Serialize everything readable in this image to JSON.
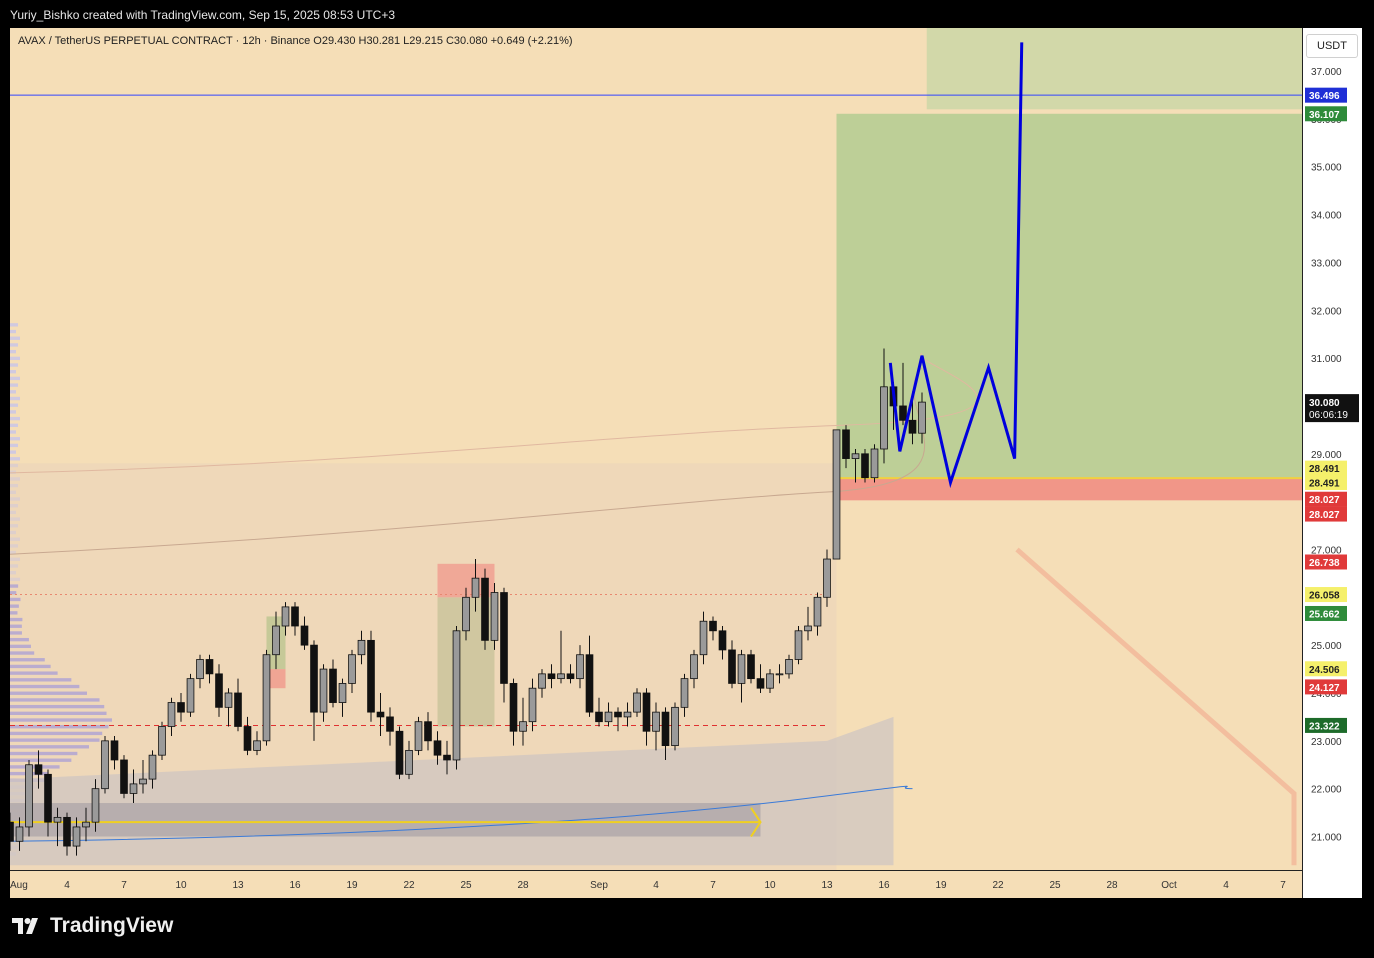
{
  "header": {
    "text": "Yuriy_Bishko created with TradingView.com, Sep 15, 2025 08:53 UTC+3"
  },
  "legend": {
    "text": "AVAX / TetherUS PERPETUAL CONTRACT · 12h · Binance  O29.430  H30.281  L29.215  C30.080  +0.649 (+2.21%)"
  },
  "unit_label": "USDT",
  "footer": {
    "brand": "TradingView"
  },
  "chart_data": {
    "type": "candlestick",
    "symbol": "AVAX / TetherUS PERPETUAL CONTRACT",
    "interval": "12h",
    "exchange": "Binance",
    "ohlc": {
      "open": 29.43,
      "high": 30.281,
      "low": 29.215,
      "close": 30.08,
      "change": 0.649,
      "change_pct": 2.21
    },
    "ylim": [
      20.3,
      37.9
    ],
    "y_ticks": [
      21,
      22,
      23,
      24,
      25,
      26,
      27,
      28,
      29,
      30,
      31,
      32,
      33,
      34,
      35,
      36,
      37
    ],
    "y_tick_labels": [
      "21.000",
      "22.000",
      "23.000",
      "24.000",
      "25.000",
      "26.000",
      "27.000",
      "28.000",
      "29.000",
      "30.000",
      "31.000",
      "32.000",
      "33.000",
      "34.000",
      "35.000",
      "36.000",
      "37.000"
    ],
    "x_range": [
      "2025-08-01",
      "2025-10-08"
    ],
    "x_ticks": [
      {
        "date": "2025-08-01",
        "label": "Aug"
      },
      {
        "date": "2025-08-04",
        "label": "4"
      },
      {
        "date": "2025-08-07",
        "label": "7"
      },
      {
        "date": "2025-08-10",
        "label": "10"
      },
      {
        "date": "2025-08-13",
        "label": "13"
      },
      {
        "date": "2025-08-16",
        "label": "16"
      },
      {
        "date": "2025-08-19",
        "label": "19"
      },
      {
        "date": "2025-08-22",
        "label": "22"
      },
      {
        "date": "2025-08-25",
        "label": "25"
      },
      {
        "date": "2025-08-28",
        "label": "28"
      },
      {
        "date": "2025-09-01",
        "label": "Sep"
      },
      {
        "date": "2025-09-04",
        "label": "4"
      },
      {
        "date": "2025-09-07",
        "label": "7"
      },
      {
        "date": "2025-09-10",
        "label": "10"
      },
      {
        "date": "2025-09-13",
        "label": "13"
      },
      {
        "date": "2025-09-16",
        "label": "16"
      },
      {
        "date": "2025-09-19",
        "label": "19"
      },
      {
        "date": "2025-09-22",
        "label": "22"
      },
      {
        "date": "2025-09-25",
        "label": "25"
      },
      {
        "date": "2025-09-28",
        "label": "28"
      },
      {
        "date": "2025-10-01",
        "label": "Oct"
      },
      {
        "date": "2025-10-04",
        "label": "4"
      },
      {
        "date": "2025-10-07",
        "label": "7"
      }
    ],
    "colors": {
      "bull": "#9a9a9a",
      "bear": "#111111",
      "background": "#f5deb7",
      "projection": "#0000dd"
    },
    "candles": [
      [
        "2025-08-01T00:00",
        21.3,
        21.5,
        20.7,
        20.9
      ],
      [
        "2025-08-01T12:00",
        20.9,
        21.4,
        20.7,
        21.2
      ],
      [
        "2025-08-02T00:00",
        21.2,
        22.6,
        21.0,
        22.5
      ],
      [
        "2025-08-02T12:00",
        22.5,
        22.8,
        22.0,
        22.3
      ],
      [
        "2025-08-03T00:00",
        22.3,
        22.4,
        21.0,
        21.3
      ],
      [
        "2025-08-03T12:00",
        21.3,
        21.6,
        20.8,
        21.4
      ],
      [
        "2025-08-04T00:00",
        21.4,
        21.5,
        20.6,
        20.8
      ],
      [
        "2025-08-04T12:00",
        20.8,
        21.4,
        20.6,
        21.2
      ],
      [
        "2025-08-05T00:00",
        21.2,
        21.6,
        20.9,
        21.3
      ],
      [
        "2025-08-05T12:00",
        21.3,
        22.2,
        21.1,
        22.0
      ],
      [
        "2025-08-06T00:00",
        22.0,
        23.1,
        21.9,
        23.0
      ],
      [
        "2025-08-06T12:00",
        23.0,
        23.1,
        22.4,
        22.6
      ],
      [
        "2025-08-07T00:00",
        22.6,
        22.7,
        21.8,
        21.9
      ],
      [
        "2025-08-07T12:00",
        21.9,
        22.4,
        21.7,
        22.1
      ],
      [
        "2025-08-08T00:00",
        22.1,
        22.6,
        21.9,
        22.2
      ],
      [
        "2025-08-08T12:00",
        22.2,
        22.8,
        22.0,
        22.7
      ],
      [
        "2025-08-09T00:00",
        22.7,
        23.4,
        22.6,
        23.3
      ],
      [
        "2025-08-09T12:00",
        23.3,
        23.9,
        23.1,
        23.8
      ],
      [
        "2025-08-10T00:00",
        23.8,
        24.0,
        23.4,
        23.6
      ],
      [
        "2025-08-10T12:00",
        23.6,
        24.4,
        23.5,
        24.3
      ],
      [
        "2025-08-11T00:00",
        24.3,
        24.8,
        24.1,
        24.7
      ],
      [
        "2025-08-11T12:00",
        24.7,
        24.8,
        24.2,
        24.4
      ],
      [
        "2025-08-12T00:00",
        24.4,
        24.6,
        23.5,
        23.7
      ],
      [
        "2025-08-12T12:00",
        23.7,
        24.1,
        23.3,
        24.0
      ],
      [
        "2025-08-13T00:00",
        24.0,
        24.3,
        23.2,
        23.3
      ],
      [
        "2025-08-13T12:00",
        23.3,
        23.5,
        22.7,
        22.8
      ],
      [
        "2025-08-14T00:00",
        22.8,
        23.2,
        22.7,
        23.0
      ],
      [
        "2025-08-14T12:00",
        23.0,
        24.9,
        22.9,
        24.8
      ],
      [
        "2025-08-15T00:00",
        24.8,
        25.7,
        24.5,
        25.4
      ],
      [
        "2025-08-15T12:00",
        25.4,
        25.9,
        25.2,
        25.8
      ],
      [
        "2025-08-16T00:00",
        25.8,
        25.9,
        25.2,
        25.4
      ],
      [
        "2025-08-16T12:00",
        25.4,
        25.6,
        24.9,
        25.0
      ],
      [
        "2025-08-17T00:00",
        25.0,
        25.1,
        23.0,
        23.6
      ],
      [
        "2025-08-17T12:00",
        23.6,
        24.6,
        23.4,
        24.5
      ],
      [
        "2025-08-18T00:00",
        24.5,
        24.7,
        23.7,
        23.8
      ],
      [
        "2025-08-18T12:00",
        23.8,
        24.3,
        23.5,
        24.2
      ],
      [
        "2025-08-19T00:00",
        24.2,
        24.9,
        24.0,
        24.8
      ],
      [
        "2025-08-19T12:00",
        24.8,
        25.3,
        24.6,
        25.1
      ],
      [
        "2025-08-20T00:00",
        25.1,
        25.3,
        23.4,
        23.6
      ],
      [
        "2025-08-20T12:00",
        23.6,
        24.0,
        23.1,
        23.5
      ],
      [
        "2025-08-21T00:00",
        23.5,
        23.7,
        22.9,
        23.2
      ],
      [
        "2025-08-21T12:00",
        23.2,
        23.3,
        22.2,
        22.3
      ],
      [
        "2025-08-22T00:00",
        22.3,
        23.0,
        22.2,
        22.8
      ],
      [
        "2025-08-22T12:00",
        22.8,
        23.5,
        22.7,
        23.4
      ],
      [
        "2025-08-23T00:00",
        23.4,
        23.6,
        22.8,
        23.0
      ],
      [
        "2025-08-23T12:00",
        23.0,
        23.2,
        22.5,
        22.7
      ],
      [
        "2025-08-24T00:00",
        22.7,
        23.0,
        22.3,
        22.6
      ],
      [
        "2025-08-24T12:00",
        22.6,
        25.4,
        22.4,
        25.3
      ],
      [
        "2025-08-25T00:00",
        25.3,
        26.2,
        25.1,
        26.0
      ],
      [
        "2025-08-25T12:00",
        26.0,
        26.8,
        25.7,
        26.4
      ],
      [
        "2025-08-26T00:00",
        26.4,
        26.6,
        24.9,
        25.1
      ],
      [
        "2025-08-26T12:00",
        25.1,
        26.3,
        24.9,
        26.1
      ],
      [
        "2025-08-27T00:00",
        26.1,
        26.2,
        23.8,
        24.2
      ],
      [
        "2025-08-27T12:00",
        24.2,
        24.3,
        22.9,
        23.2
      ],
      [
        "2025-08-28T00:00",
        23.2,
        23.9,
        22.9,
        23.4
      ],
      [
        "2025-08-28T12:00",
        23.4,
        24.3,
        23.2,
        24.1
      ],
      [
        "2025-08-29T00:00",
        24.1,
        24.5,
        23.9,
        24.4
      ],
      [
        "2025-08-29T12:00",
        24.4,
        24.6,
        24.1,
        24.3
      ],
      [
        "2025-08-30T00:00",
        24.3,
        25.3,
        24.2,
        24.4
      ],
      [
        "2025-08-30T12:00",
        24.4,
        24.6,
        24.2,
        24.3
      ],
      [
        "2025-08-31T00:00",
        24.3,
        25.0,
        24.1,
        24.8
      ],
      [
        "2025-08-31T12:00",
        24.8,
        25.2,
        23.5,
        23.6
      ],
      [
        "2025-09-01T00:00",
        23.6,
        23.9,
        23.3,
        23.4
      ],
      [
        "2025-09-01T12:00",
        23.4,
        23.8,
        23.3,
        23.6
      ],
      [
        "2025-09-02T00:00",
        23.6,
        23.7,
        23.2,
        23.5
      ],
      [
        "2025-09-02T12:00",
        23.5,
        23.8,
        23.3,
        23.6
      ],
      [
        "2025-09-03T00:00",
        23.6,
        24.1,
        23.5,
        24.0
      ],
      [
        "2025-09-03T12:00",
        24.0,
        24.1,
        22.9,
        23.2
      ],
      [
        "2025-09-04T00:00",
        23.2,
        23.8,
        22.8,
        23.6
      ],
      [
        "2025-09-04T12:00",
        23.6,
        23.7,
        22.6,
        22.9
      ],
      [
        "2025-09-05T00:00",
        22.9,
        23.8,
        22.8,
        23.7
      ],
      [
        "2025-09-05T12:00",
        23.7,
        24.4,
        23.5,
        24.3
      ],
      [
        "2025-09-06T00:00",
        24.3,
        24.9,
        24.1,
        24.8
      ],
      [
        "2025-09-06T12:00",
        24.8,
        25.7,
        24.6,
        25.5
      ],
      [
        "2025-09-07T00:00",
        25.5,
        25.6,
        25.1,
        25.3
      ],
      [
        "2025-09-07T12:00",
        25.3,
        25.4,
        24.7,
        24.9
      ],
      [
        "2025-09-08T00:00",
        24.9,
        25.1,
        24.1,
        24.2
      ],
      [
        "2025-09-08T12:00",
        24.2,
        24.9,
        23.8,
        24.8
      ],
      [
        "2025-09-09T00:00",
        24.8,
        24.9,
        24.2,
        24.3
      ],
      [
        "2025-09-09T12:00",
        24.3,
        24.6,
        24.0,
        24.1
      ],
      [
        "2025-09-10T00:00",
        24.1,
        24.5,
        24.0,
        24.4
      ],
      [
        "2025-09-10T12:00",
        24.4,
        24.6,
        24.2,
        24.4
      ],
      [
        "2025-09-11T00:00",
        24.4,
        24.8,
        24.3,
        24.7
      ],
      [
        "2025-09-11T12:00",
        24.7,
        25.4,
        24.6,
        25.3
      ],
      [
        "2025-09-12T00:00",
        25.3,
        25.8,
        25.1,
        25.4
      ],
      [
        "2025-09-12T12:00",
        25.4,
        26.1,
        25.2,
        26.0
      ],
      [
        "2025-09-13T00:00",
        26.0,
        27.0,
        25.8,
        26.8
      ],
      [
        "2025-09-13T12:00",
        26.8,
        29.5,
        26.8,
        29.5
      ],
      [
        "2025-09-14T00:00",
        29.5,
        29.6,
        28.7,
        28.9
      ],
      [
        "2025-09-14T12:00",
        28.9,
        29.1,
        28.4,
        29.0
      ],
      [
        "2025-09-15T00:00",
        29.0,
        29.1,
        28.4,
        28.5
      ],
      [
        "2025-09-15T12:00",
        28.5,
        29.2,
        28.4,
        29.1
      ],
      [
        "2025-09-16T00:00",
        29.1,
        31.2,
        28.8,
        30.4
      ],
      [
        "2025-09-16T12:00",
        30.4,
        30.5,
        29.5,
        30.0
      ],
      [
        "2025-09-17T00:00",
        30.0,
        30.9,
        29.6,
        29.7
      ],
      [
        "2025-09-17T12:00",
        29.7,
        30.3,
        29.2,
        29.43
      ],
      [
        "2025-09-18T00:00",
        29.43,
        30.281,
        29.215,
        30.08
      ]
    ],
    "trade_zone": {
      "x_start": "2025-09-13T12:00",
      "x_end": "2025-10-08",
      "target_top": 36.107,
      "entry": 28.491,
      "stop": 28.027
    },
    "projection_path": [
      [
        "2025-09-16T08:00",
        30.9
      ],
      [
        "2025-09-16T20:00",
        29.05
      ],
      [
        "2025-09-18T00:00",
        31.05
      ],
      [
        "2025-09-19T12:00",
        28.4
      ],
      [
        "2025-09-21T12:00",
        30.8
      ],
      [
        "2025-09-22T21:00",
        28.9
      ],
      [
        "2025-09-23T06:00",
        37.6
      ]
    ],
    "horizontal_levels": [
      {
        "price": 36.496,
        "color": "#3344ff",
        "style": "solid"
      },
      {
        "price": 26.058,
        "color": "#e88870",
        "style": "dotted"
      },
      {
        "price": 23.32,
        "color": "#e03030",
        "style": "dashed"
      }
    ],
    "price_labels": [
      {
        "text": "36.496",
        "price": 36.496,
        "bg": "#1f2fd6",
        "fg": "#ffffff"
      },
      {
        "text": "36.107",
        "price": 36.107,
        "bg": "#2e8b3a",
        "fg": "#ffffff"
      },
      {
        "text": "28.491",
        "price": 28.7,
        "bg": "#f5f06b",
        "fg": "#222222"
      },
      {
        "text": "28.491",
        "price": 28.4,
        "bg": "#f5f06b",
        "fg": "#222222"
      },
      {
        "text": "28.027",
        "price": 28.05,
        "bg": "#e03a3a",
        "fg": "#ffffff"
      },
      {
        "text": "28.027",
        "price": 27.74,
        "bg": "#e03a3a",
        "fg": "#ffffff"
      },
      {
        "text": "26.738",
        "price": 26.738,
        "bg": "#e03a3a",
        "fg": "#ffffff"
      },
      {
        "text": "26.058",
        "price": 26.058,
        "bg": "#f5f06b",
        "fg": "#222222"
      },
      {
        "text": "25.662",
        "price": 25.662,
        "bg": "#2e8b3a",
        "fg": "#ffffff"
      },
      {
        "text": "24.506",
        "price": 24.506,
        "bg": "#f5f06b",
        "fg": "#222222"
      },
      {
        "text": "24.127",
        "price": 24.127,
        "bg": "#e03a3a",
        "fg": "#ffffff"
      },
      {
        "text": "23.322",
        "price": 23.322,
        "bg": "#1d6b2a",
        "fg": "#ffffff"
      }
    ],
    "last_price": {
      "price": 30.08,
      "text": "30.080",
      "countdown": "06:06:19"
    }
  }
}
